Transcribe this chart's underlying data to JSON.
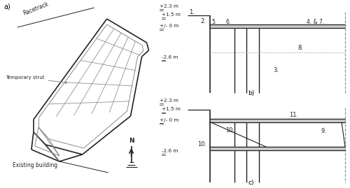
{
  "fig_width": 5.0,
  "fig_height": 2.69,
  "dpi": 100,
  "bg_color": "#ffffff",
  "label_a": "a)",
  "label_b": "b)",
  "label_c": "c)",
  "dark": "#222222",
  "gray": "#888888",
  "lgray": "#aaaaaa"
}
